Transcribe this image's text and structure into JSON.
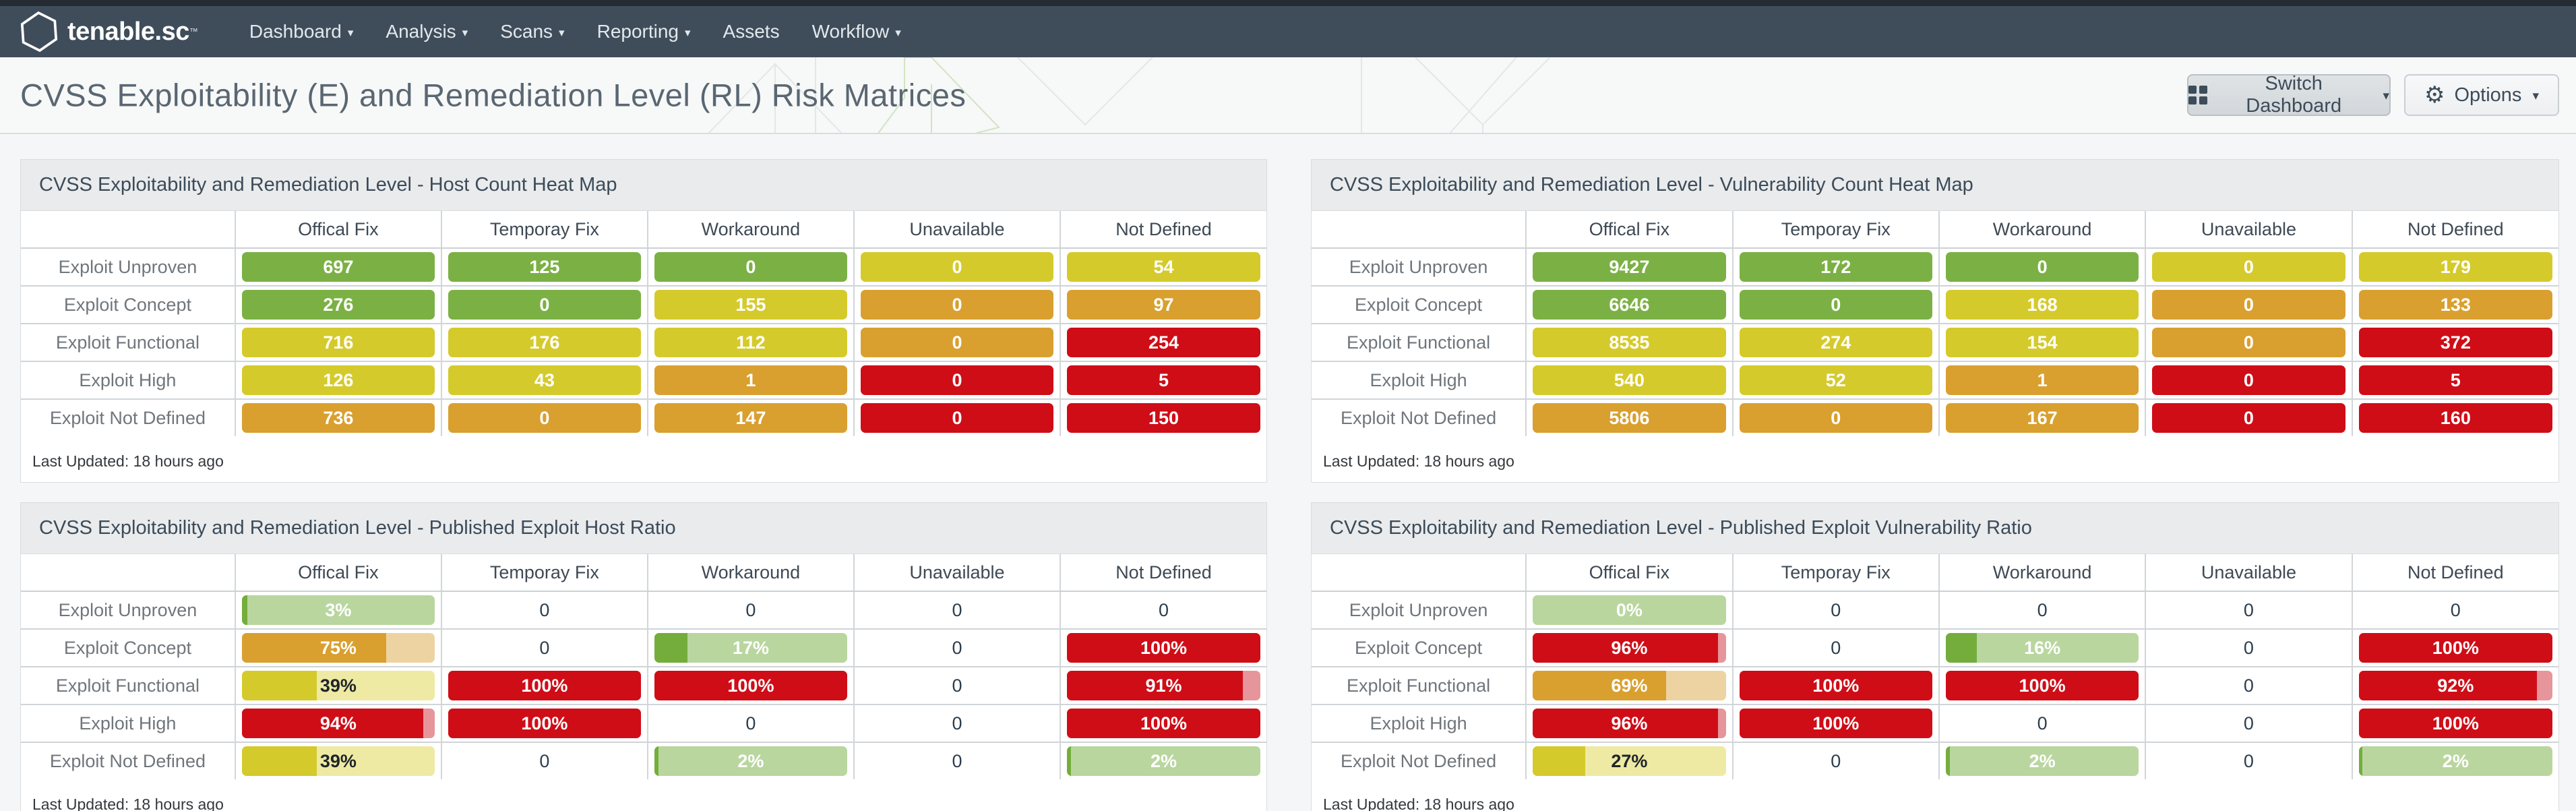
{
  "nav": {
    "brand": "tenable.sc",
    "brand_tm": "™",
    "items": [
      {
        "label": "Dashboard",
        "caret": true
      },
      {
        "label": "Analysis",
        "caret": true
      },
      {
        "label": "Scans",
        "caret": true
      },
      {
        "label": "Reporting",
        "caret": true
      },
      {
        "label": "Assets",
        "caret": false
      },
      {
        "label": "Workflow",
        "caret": true
      }
    ]
  },
  "header": {
    "title": "CVSS Exploitability (E) and Remediation Level (RL) Risk Matrices",
    "switch_dashboard_label": "Switch Dashboard",
    "options_label": "Options"
  },
  "column_headers": [
    "Offical Fix",
    "Temporay Fix",
    "Workaround",
    "Unavailable",
    "Not Defined"
  ],
  "row_labels": [
    "Exploit Unproven",
    "Exploit Concept",
    "Exploit Functional",
    "Exploit High",
    "Exploit Not Defined"
  ],
  "last_updated": "Last Updated: 18 hours ago",
  "colors": {
    "green": "#7bb144",
    "yellow": "#d5ca2b",
    "orange": "#d9a02f",
    "red": "#cf0d17",
    "green-light": "#b9d69f",
    "yellow-light": "#eeeaa4",
    "orange-light": "#eed3a2",
    "red-light": "#e6959a",
    "green-fill": "#74ad3c",
    "nav-bg": "#3f4d5b",
    "accent-text": "#3d4c59"
  },
  "panels": [
    {
      "title": "CVSS Exploitability and Remediation Level - Host Count Heat Map",
      "kind": "heatmap",
      "rows": [
        [
          {
            "kind": "pill",
            "value": "697",
            "level": "green"
          },
          {
            "kind": "pill",
            "value": "125",
            "level": "green"
          },
          {
            "kind": "pill",
            "value": "0",
            "level": "green"
          },
          {
            "kind": "pill",
            "value": "0",
            "level": "yellow"
          },
          {
            "kind": "pill",
            "value": "54",
            "level": "yellow"
          }
        ],
        [
          {
            "kind": "pill",
            "value": "276",
            "level": "green"
          },
          {
            "kind": "pill",
            "value": "0",
            "level": "green"
          },
          {
            "kind": "pill",
            "value": "155",
            "level": "yellow"
          },
          {
            "kind": "pill",
            "value": "0",
            "level": "orange"
          },
          {
            "kind": "pill",
            "value": "97",
            "level": "orange"
          }
        ],
        [
          {
            "kind": "pill",
            "value": "716",
            "level": "yellow"
          },
          {
            "kind": "pill",
            "value": "176",
            "level": "yellow"
          },
          {
            "kind": "pill",
            "value": "112",
            "level": "yellow"
          },
          {
            "kind": "pill",
            "value": "0",
            "level": "orange"
          },
          {
            "kind": "pill",
            "value": "254",
            "level": "red"
          }
        ],
        [
          {
            "kind": "pill",
            "value": "126",
            "level": "yellow"
          },
          {
            "kind": "pill",
            "value": "43",
            "level": "yellow"
          },
          {
            "kind": "pill",
            "value": "1",
            "level": "orange"
          },
          {
            "kind": "pill",
            "value": "0",
            "level": "red"
          },
          {
            "kind": "pill",
            "value": "5",
            "level": "red"
          }
        ],
        [
          {
            "kind": "pill",
            "value": "736",
            "level": "orange"
          },
          {
            "kind": "pill",
            "value": "0",
            "level": "orange"
          },
          {
            "kind": "pill",
            "value": "147",
            "level": "orange"
          },
          {
            "kind": "pill",
            "value": "0",
            "level": "red"
          },
          {
            "kind": "pill",
            "value": "150",
            "level": "red"
          }
        ]
      ]
    },
    {
      "title": "CVSS Exploitability and Remediation Level - Vulnerability Count Heat Map",
      "kind": "heatmap",
      "rows": [
        [
          {
            "kind": "pill",
            "value": "9427",
            "level": "green"
          },
          {
            "kind": "pill",
            "value": "172",
            "level": "green"
          },
          {
            "kind": "pill",
            "value": "0",
            "level": "green"
          },
          {
            "kind": "pill",
            "value": "0",
            "level": "yellow"
          },
          {
            "kind": "pill",
            "value": "179",
            "level": "yellow"
          }
        ],
        [
          {
            "kind": "pill",
            "value": "6646",
            "level": "green"
          },
          {
            "kind": "pill",
            "value": "0",
            "level": "green"
          },
          {
            "kind": "pill",
            "value": "168",
            "level": "yellow"
          },
          {
            "kind": "pill",
            "value": "0",
            "level": "orange"
          },
          {
            "kind": "pill",
            "value": "133",
            "level": "orange"
          }
        ],
        [
          {
            "kind": "pill",
            "value": "8535",
            "level": "yellow"
          },
          {
            "kind": "pill",
            "value": "274",
            "level": "yellow"
          },
          {
            "kind": "pill",
            "value": "154",
            "level": "yellow"
          },
          {
            "kind": "pill",
            "value": "0",
            "level": "orange"
          },
          {
            "kind": "pill",
            "value": "372",
            "level": "red"
          }
        ],
        [
          {
            "kind": "pill",
            "value": "540",
            "level": "yellow"
          },
          {
            "kind": "pill",
            "value": "52",
            "level": "yellow"
          },
          {
            "kind": "pill",
            "value": "1",
            "level": "orange"
          },
          {
            "kind": "pill",
            "value": "0",
            "level": "red"
          },
          {
            "kind": "pill",
            "value": "5",
            "level": "red"
          }
        ],
        [
          {
            "kind": "pill",
            "value": "5806",
            "level": "orange"
          },
          {
            "kind": "pill",
            "value": "0",
            "level": "orange"
          },
          {
            "kind": "pill",
            "value": "167",
            "level": "orange"
          },
          {
            "kind": "pill",
            "value": "0",
            "level": "red"
          },
          {
            "kind": "pill",
            "value": "160",
            "level": "red"
          }
        ]
      ]
    },
    {
      "title": "CVSS Exploitability and Remediation Level - Published Exploit Host Ratio",
      "kind": "ratio",
      "rows": [
        [
          {
            "kind": "bar",
            "value": "3%",
            "pct": 3,
            "level": "green"
          },
          {
            "kind": "text",
            "value": "0"
          },
          {
            "kind": "text",
            "value": "0"
          },
          {
            "kind": "text",
            "value": "0"
          },
          {
            "kind": "text",
            "value": "0"
          }
        ],
        [
          {
            "kind": "bar",
            "value": "75%",
            "pct": 75,
            "level": "orange"
          },
          {
            "kind": "text",
            "value": "0"
          },
          {
            "kind": "bar",
            "value": "17%",
            "pct": 17,
            "level": "green"
          },
          {
            "kind": "text",
            "value": "0"
          },
          {
            "kind": "bar",
            "value": "100%",
            "pct": 100,
            "level": "red"
          }
        ],
        [
          {
            "kind": "bar",
            "value": "39%",
            "pct": 39,
            "level": "yellow"
          },
          {
            "kind": "bar",
            "value": "100%",
            "pct": 100,
            "level": "red"
          },
          {
            "kind": "bar",
            "value": "100%",
            "pct": 100,
            "level": "red"
          },
          {
            "kind": "text",
            "value": "0"
          },
          {
            "kind": "bar",
            "value": "91%",
            "pct": 91,
            "level": "red"
          }
        ],
        [
          {
            "kind": "bar",
            "value": "94%",
            "pct": 94,
            "level": "red"
          },
          {
            "kind": "bar",
            "value": "100%",
            "pct": 100,
            "level": "red"
          },
          {
            "kind": "text",
            "value": "0"
          },
          {
            "kind": "text",
            "value": "0"
          },
          {
            "kind": "bar",
            "value": "100%",
            "pct": 100,
            "level": "red"
          }
        ],
        [
          {
            "kind": "bar",
            "value": "39%",
            "pct": 39,
            "level": "yellow"
          },
          {
            "kind": "text",
            "value": "0"
          },
          {
            "kind": "bar",
            "value": "2%",
            "pct": 2,
            "level": "green"
          },
          {
            "kind": "text",
            "value": "0"
          },
          {
            "kind": "bar",
            "value": "2%",
            "pct": 2,
            "level": "green"
          }
        ]
      ]
    },
    {
      "title": "CVSS Exploitability and Remediation Level - Published Exploit Vulnerability Ratio",
      "kind": "ratio",
      "rows": [
        [
          {
            "kind": "bar",
            "value": "0%",
            "pct": 0,
            "level": "green"
          },
          {
            "kind": "text",
            "value": "0"
          },
          {
            "kind": "text",
            "value": "0"
          },
          {
            "kind": "text",
            "value": "0"
          },
          {
            "kind": "text",
            "value": "0"
          }
        ],
        [
          {
            "kind": "bar",
            "value": "96%",
            "pct": 96,
            "level": "red"
          },
          {
            "kind": "text",
            "value": "0"
          },
          {
            "kind": "bar",
            "value": "16%",
            "pct": 16,
            "level": "green"
          },
          {
            "kind": "text",
            "value": "0"
          },
          {
            "kind": "bar",
            "value": "100%",
            "pct": 100,
            "level": "red"
          }
        ],
        [
          {
            "kind": "bar",
            "value": "69%",
            "pct": 69,
            "level": "orange"
          },
          {
            "kind": "bar",
            "value": "100%",
            "pct": 100,
            "level": "red"
          },
          {
            "kind": "bar",
            "value": "100%",
            "pct": 100,
            "level": "red"
          },
          {
            "kind": "text",
            "value": "0"
          },
          {
            "kind": "bar",
            "value": "92%",
            "pct": 92,
            "level": "red"
          }
        ],
        [
          {
            "kind": "bar",
            "value": "96%",
            "pct": 96,
            "level": "red"
          },
          {
            "kind": "bar",
            "value": "100%",
            "pct": 100,
            "level": "red"
          },
          {
            "kind": "text",
            "value": "0"
          },
          {
            "kind": "text",
            "value": "0"
          },
          {
            "kind": "bar",
            "value": "100%",
            "pct": 100,
            "level": "red"
          }
        ],
        [
          {
            "kind": "bar",
            "value": "27%",
            "pct": 27,
            "level": "yellow"
          },
          {
            "kind": "text",
            "value": "0"
          },
          {
            "kind": "bar",
            "value": "2%",
            "pct": 2,
            "level": "green"
          },
          {
            "kind": "text",
            "value": "0"
          },
          {
            "kind": "bar",
            "value": "2%",
            "pct": 2,
            "level": "green"
          }
        ]
      ]
    }
  ]
}
